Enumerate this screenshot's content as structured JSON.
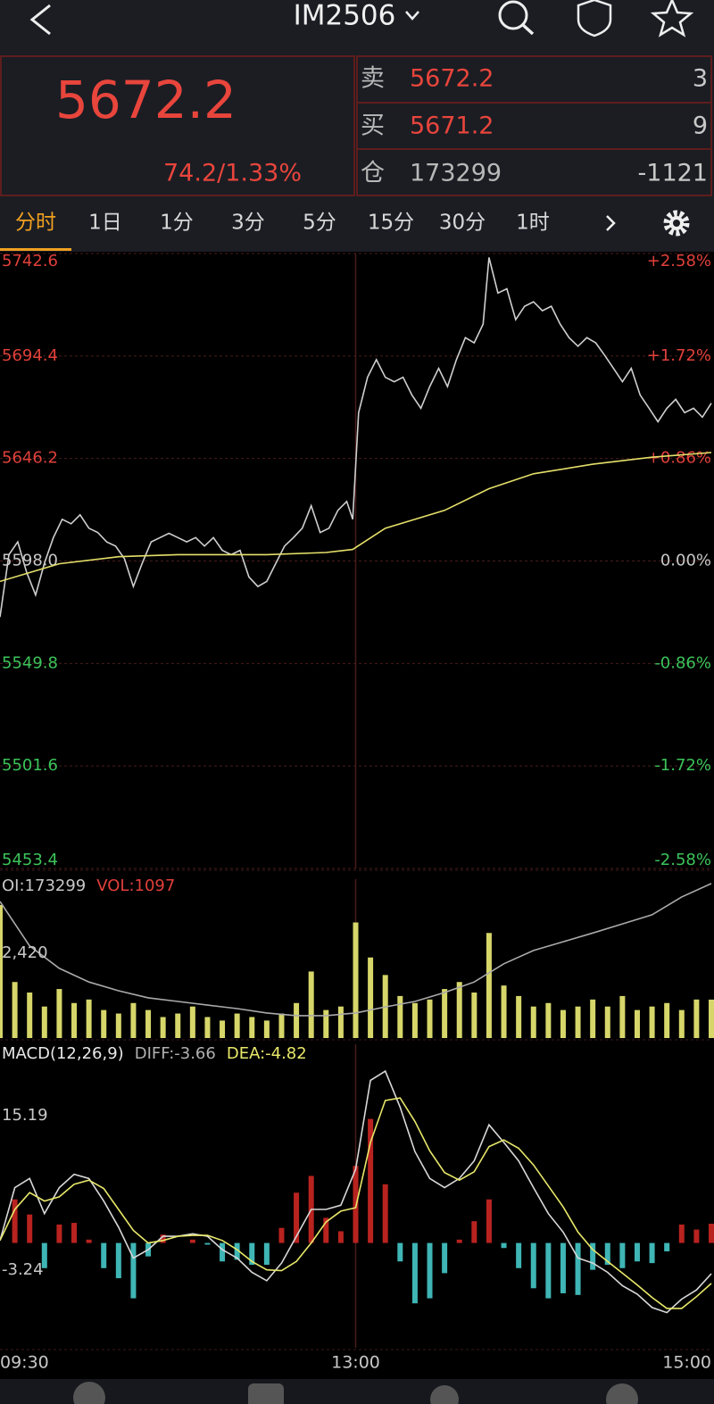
{
  "header": {
    "title": "IM2506"
  },
  "quote": {
    "price": "5672.2",
    "change": "74.2/1.33%",
    "rows": [
      {
        "label": "卖",
        "value": "5672.2",
        "qty": "3",
        "color": "#e8453c"
      },
      {
        "label": "买",
        "value": "5671.2",
        "qty": "9",
        "color": "#e8453c"
      },
      {
        "label": "仓",
        "value": "173299",
        "qty": "-1121",
        "color": "#b8b8b8"
      }
    ]
  },
  "tabs": [
    "分时",
    "1日",
    "1分",
    "3分",
    "5分",
    "15分",
    "30分",
    "1时"
  ],
  "active_tab": 0,
  "chart_data": [
    {
      "type": "line",
      "xlim": [
        0,
        240
      ],
      "ylim": [
        5453.4,
        5742.6
      ],
      "yticks": [
        5742.6,
        5694.4,
        5646.2,
        {
          "value": 5598,
          "label": "5598.0"
        },
        5549.8,
        5501.6,
        5453.4
      ],
      "y2lim": [
        -2.58,
        2.58
      ],
      "y2ticks": [
        {
          "value": 2.58,
          "label": "+2.58%"
        },
        {
          "value": 1.72,
          "label": "+1.72%"
        },
        {
          "value": 0.86,
          "label": "+0.86%"
        },
        {
          "value": 0,
          "label": "0.00%"
        },
        {
          "value": -0.86,
          "label": "-0.86%"
        },
        {
          "value": -1.72,
          "label": "-1.72%"
        },
        {
          "value": -2.58,
          "label": "-2.58%"
        }
      ],
      "series": [
        {
          "color": "#cfcfcf",
          "x": [
            0,
            3,
            6,
            9,
            12,
            15,
            18,
            21,
            24,
            27,
            30,
            33,
            36,
            39,
            42,
            45,
            48,
            51,
            54,
            57,
            60,
            63,
            66,
            69,
            72,
            75,
            78,
            81,
            84,
            87,
            90,
            93,
            96,
            99,
            102,
            105,
            108,
            111,
            114,
            117,
            119,
            121,
            124,
            127,
            130,
            133,
            136,
            139,
            142,
            145,
            148,
            151,
            154,
            157,
            160,
            163,
            165,
            168,
            171,
            174,
            177,
            180,
            183,
            186,
            189,
            192,
            195,
            198,
            201,
            204,
            207,
            210,
            213,
            216,
            219,
            222,
            225,
            228,
            231,
            234,
            237,
            240
          ],
          "values": [
            5571.7,
            5601,
            5607,
            5592.6,
            5582,
            5597,
            5609,
            5617.6,
            5615.5,
            5619.7,
            5613.4,
            5611.4,
            5607,
            5605,
            5599,
            5586,
            5597,
            5607,
            5609,
            5611,
            5609,
            5607,
            5609,
            5605,
            5609,
            5603,
            5601,
            5603,
            5590.5,
            5586,
            5588.4,
            5596.7,
            5605,
            5609,
            5613.4,
            5624,
            5611.4,
            5613.4,
            5621.8,
            5626,
            5617.6,
            5667.7,
            5684.4,
            5692.7,
            5684.4,
            5682.3,
            5684.4,
            5676,
            5669.8,
            5680,
            5688.6,
            5680,
            5692.7,
            5703,
            5700.6,
            5709.4,
            5740.7,
            5724,
            5726,
            5711.5,
            5717.8,
            5719.9,
            5715.7,
            5717.8,
            5709.4,
            5703,
            5699,
            5703,
            5700.6,
            5694.8,
            5688.6,
            5682.3,
            5688.6,
            5676,
            5669.8,
            5663.5,
            5669.8,
            5674,
            5667.7,
            5669.8,
            5665.6,
            5672.2
          ]
        },
        {
          "color": "#e5e06a",
          "x": [
            0,
            20,
            40,
            60,
            90,
            110,
            119,
            130,
            150,
            165,
            180,
            200,
            220,
            240
          ],
          "values": [
            5588.4,
            5596.7,
            5600,
            5601,
            5601,
            5602,
            5603.4,
            5613.4,
            5621.8,
            5632,
            5639,
            5643.5,
            5646.8,
            5649
          ]
        }
      ]
    },
    {
      "type": "bar",
      "xlim": [
        0,
        240
      ],
      "ylim": [
        0,
        4536
      ],
      "yticks": [
        {
          "value": 2420,
          "label": "2,420"
        }
      ],
      "labels": [
        {
          "text": "OI:173299",
          "color": "#c8c8c8"
        },
        {
          "text": "VOL:1097",
          "color": "#e0403a"
        }
      ],
      "x": [
        0,
        5,
        10,
        15,
        20,
        25,
        30,
        35,
        40,
        45,
        50,
        55,
        60,
        65,
        70,
        75,
        80,
        85,
        90,
        95,
        100,
        105,
        110,
        115,
        120,
        125,
        130,
        135,
        140,
        145,
        150,
        155,
        160,
        165,
        170,
        175,
        180,
        185,
        190,
        195,
        200,
        205,
        210,
        215,
        220,
        225,
        230,
        235,
        240
      ],
      "series": [
        {
          "color": "#d6d66a",
          "values": [
            3800,
            1600,
            1300,
            900,
            1400,
            1000,
            1100,
            800,
            700,
            1000,
            800,
            600,
            700,
            900,
            600,
            500,
            700,
            600,
            500,
            700,
            1000,
            1900,
            800,
            900,
            3300,
            2300,
            1800,
            1200,
            1000,
            1100,
            1400,
            1600,
            1300,
            3000,
            1500,
            1200,
            900,
            1000,
            800,
            900,
            1100,
            900,
            1200,
            800,
            900,
            1000,
            800,
            1100,
            1097
          ]
        }
      ],
      "lines": [
        {
          "color": "#aaaaaa",
          "x": [
            0,
            10,
            20,
            30,
            40,
            50,
            60,
            70,
            80,
            90,
            100,
            110,
            120,
            130,
            140,
            150,
            160,
            170,
            180,
            190,
            200,
            210,
            220,
            230,
            240
          ],
          "values": [
            3900,
            2630,
            1990,
            1600,
            1350,
            1150,
            1045,
            940,
            840,
            715,
            640,
            640,
            715,
            890,
            1045,
            1300,
            1600,
            2120,
            2500,
            2750,
            3000,
            3260,
            3520,
            4030,
            4410
          ]
        }
      ]
    },
    {
      "type": "macd",
      "xlim": [
        0,
        240
      ],
      "ylim": [
        -12.5,
        23.7
      ],
      "yticks": [
        15.19,
        -3.24
      ],
      "xticks": [
        {
          "value": 0,
          "label": "09:30"
        },
        {
          "value": 120,
          "label": "13:00"
        },
        {
          "value": 240,
          "label": "15:00"
        }
      ],
      "labels": [
        {
          "text": "MACD(12,26,9)",
          "color": "#e8e8e8"
        },
        {
          "text": "DIFF:-3.66",
          "color": "#b0b0b0"
        },
        {
          "text": "DEA:-4.82",
          "color": "#e8e86a"
        }
      ],
      "x": [
        0,
        5,
        10,
        15,
        20,
        25,
        30,
        35,
        40,
        45,
        50,
        55,
        60,
        65,
        70,
        75,
        80,
        85,
        90,
        95,
        100,
        105,
        110,
        115,
        120,
        125,
        130,
        135,
        140,
        145,
        150,
        155,
        160,
        165,
        170,
        175,
        180,
        185,
        190,
        195,
        200,
        205,
        210,
        215,
        220,
        225,
        230,
        235,
        240
      ],
      "hist": {
        "up_color": "#b8231f",
        "down_color": "#3fb5b5",
        "values": [
          0,
          5.2,
          3.4,
          -3,
          2.2,
          2.4,
          0.4,
          -3,
          -4.2,
          -6.6,
          -1.6,
          1,
          0,
          0.4,
          -0.2,
          -2.2,
          -2,
          -2.6,
          -2.6,
          1.8,
          6,
          8,
          3,
          1.4,
          9.2,
          14.8,
          7,
          -2.2,
          -7.2,
          -6.6,
          -3.6,
          0.4,
          2.6,
          5.2,
          -0.6,
          -3,
          -5.4,
          -6.6,
          -6,
          -6.2,
          -3.2,
          -2.6,
          -3,
          -2.2,
          -2.4,
          -1,
          2.2,
          1.6,
          2.3
        ]
      },
      "series": [
        {
          "color": "#d8d8d8",
          "values": [
            0.3,
            6.6,
            7.7,
            3.5,
            6.6,
            8.2,
            7.7,
            5,
            1.9,
            -1.8,
            -0.8,
            0.8,
            0.8,
            1.1,
            0.8,
            -0.8,
            -1.8,
            -3.5,
            -4.5,
            -2.4,
            0.8,
            4,
            4,
            4.5,
            8.8,
            19.4,
            20.5,
            16.2,
            10.9,
            7.7,
            6.6,
            7.7,
            9.8,
            14.1,
            12,
            9.8,
            6.6,
            3.5,
            1.3,
            -1.8,
            -2.4,
            -3.5,
            -5.1,
            -6.1,
            -7.7,
            -8.3,
            -6.7,
            -5.6,
            -3.66
          ]
        },
        {
          "color": "#e8e86a",
          "values": [
            0.3,
            4,
            6,
            5,
            5.5,
            7,
            7.5,
            6.5,
            4,
            1.5,
            0,
            0.3,
            0.8,
            0.9,
            0.9,
            0.3,
            -0.8,
            -2.2,
            -3.2,
            -3.3,
            -2.2,
            0,
            2.5,
            3.8,
            4.2,
            12,
            17,
            17.3,
            14.5,
            11,
            8.4,
            7.5,
            8.5,
            11.5,
            12.3,
            11.3,
            9.3,
            6.8,
            4.3,
            1.3,
            -0.8,
            -2.2,
            -3.6,
            -5,
            -6.5,
            -7.8,
            -7.8,
            -6.4,
            -4.82
          ]
        }
      ]
    }
  ]
}
